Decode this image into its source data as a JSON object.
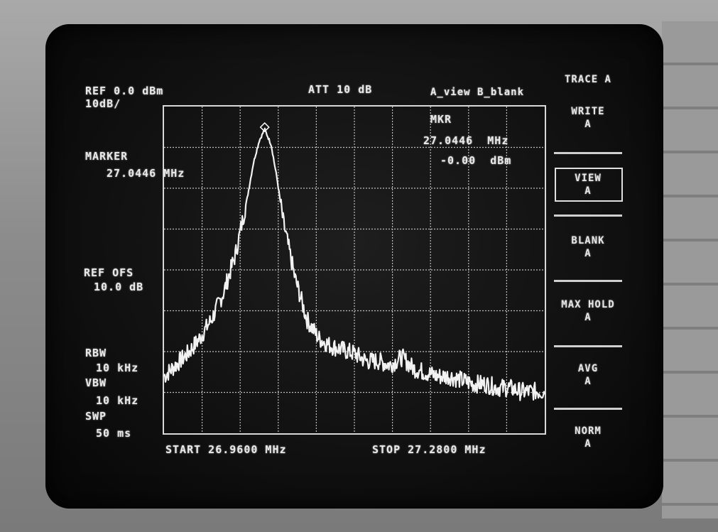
{
  "header": {
    "ref_level": "REF 0.0 dBm",
    "scale": "10dB/",
    "attenuation": "ATT 10 dB",
    "trace_mode": "A_view B_blank"
  },
  "marker_readout": {
    "top_label": "MKR",
    "frequency": "27.0446  MHz",
    "amplitude": "-0.00  dBm"
  },
  "left_panel": {
    "marker_label": "MARKER",
    "marker_freq": "27.0446 MHz",
    "ref_ofs_label": "REF OFS",
    "ref_ofs_value": "10.0 dB",
    "rbw_label": "RBW",
    "rbw_value": "10 kHz",
    "vbw_label": "VBW",
    "vbw_value": "10 kHz",
    "swp_label": "SWP",
    "swp_value": "50 ms"
  },
  "footer": {
    "start": "START 26.9600 MHz",
    "stop": "STOP 27.2800 MHz"
  },
  "softkeys": {
    "title": "TRACE A",
    "items": [
      {
        "label": "WRITE\nA"
      },
      {
        "label": "VIEW\nA",
        "selected": true
      },
      {
        "label": "BLANK\nA"
      },
      {
        "label": "MAX HOLD\nA"
      },
      {
        "label": "AVG\nA"
      },
      {
        "label": "NORM\nA"
      }
    ]
  },
  "chart_data": {
    "type": "line",
    "x_range_mhz": [
      26.96,
      27.28
    ],
    "y_range_dbm": [
      -80,
      0
    ],
    "grid": true,
    "grid_divisions": {
      "x": 10,
      "y": 8
    },
    "marker": {
      "x_mhz": 27.0446,
      "y_dbm": -0.0
    },
    "series": [
      {
        "x": [
          26.96,
          26.97,
          26.98,
          26.99,
          27.0,
          27.01,
          27.02,
          27.03,
          27.035,
          27.04,
          27.0446,
          27.05,
          27.055,
          27.06,
          27.07,
          27.08,
          27.09,
          27.1,
          27.11,
          27.12,
          27.13,
          27.14,
          27.15,
          27.16,
          27.17,
          27.18,
          27.19,
          27.2,
          27.21,
          27.22,
          27.23,
          27.24,
          27.25,
          27.26,
          27.27,
          27.28
        ],
        "y": [
          -65,
          -62,
          -59,
          -55,
          -50,
          -43,
          -33,
          -18,
          -9,
          -3,
          0,
          -4,
          -13,
          -24,
          -39,
          -50,
          -55,
          -57,
          -58,
          -59,
          -61,
          -61,
          -62,
          -60,
          -63,
          -64,
          -65,
          -65,
          -66,
          -67,
          -67,
          -68,
          -68,
          -69,
          -69,
          -69
        ]
      }
    ]
  }
}
